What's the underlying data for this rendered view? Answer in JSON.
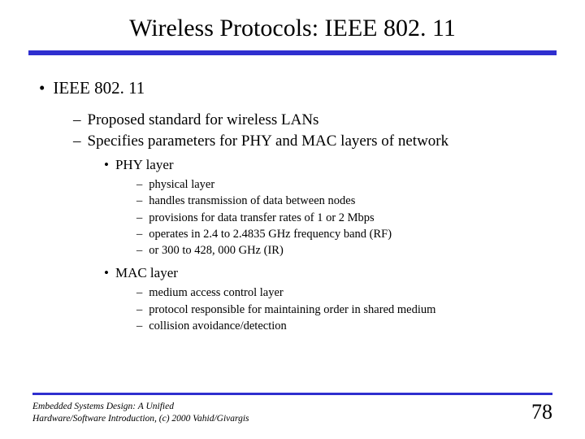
{
  "colors": {
    "rule": "#2f2fcf",
    "text": "#000000",
    "background": "#ffffff"
  },
  "title": "Wireless Protocols: IEEE 802. 11",
  "content": {
    "h1": "IEEE 802. 11",
    "sub1": "Proposed standard for wireless LANs",
    "sub2": "Specifies parameters for PHY and MAC layers of network",
    "phy": {
      "label": "PHY layer",
      "items": [
        "physical layer",
        "handles transmission of data between nodes",
        "provisions for data transfer rates of 1 or 2 Mbps",
        "operates in 2.4 to 2.4835 GHz frequency band (RF)",
        "or 300 to 428, 000 GHz (IR)"
      ]
    },
    "mac": {
      "label": "MAC layer",
      "items": [
        "medium access control layer",
        "protocol responsible for maintaining order in shared medium",
        "collision avoidance/detection"
      ]
    }
  },
  "footer": {
    "line1": "Embedded Systems Design: A Unified",
    "line2": "Hardware/Software Introduction, (c) 2000 Vahid/Givargis",
    "page": "78"
  }
}
